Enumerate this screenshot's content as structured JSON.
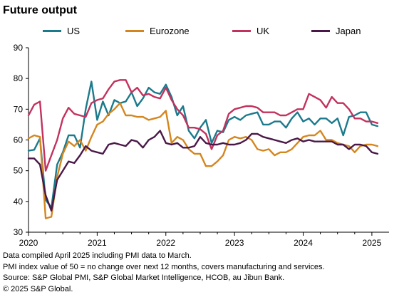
{
  "title": "Future output",
  "notes": [
    "Data compiled April 2025 including PMI data to March.",
    "PMI index value of 50 = no change over next 12 months, covers manufacturing and services.",
    "Source: S&P Global PMI, S&P Global Market Intelligence, HCOB, au Jibun Bank.",
    "© 2025 S&P Global."
  ],
  "chart_data": {
    "type": "line",
    "x_start": "2020-01",
    "x_tick_labels": [
      "2020",
      "2021",
      "2022",
      "2023",
      "2024",
      "2025"
    ],
    "ylim": [
      30,
      90
    ],
    "y_ticks": [
      30,
      40,
      50,
      60,
      70,
      80,
      90
    ],
    "grid": false,
    "legend_placement": "top",
    "series": [
      {
        "name": "US",
        "color": "#1b7a8c",
        "values": [
          56.5,
          56.8,
          60.5,
          40.5,
          38,
          52,
          56,
          61.5,
          61.5,
          57.5,
          70,
          79,
          66.5,
          72.5,
          68,
          73,
          72,
          72.5,
          75.5,
          71,
          73.5,
          77,
          75.5,
          75,
          78,
          74,
          68,
          71,
          63,
          60.5,
          64,
          66.5,
          59,
          63,
          62.5,
          66.5,
          67.5,
          66.5,
          68,
          68.5,
          69,
          65,
          65,
          66,
          66,
          64,
          67,
          69,
          66,
          67,
          65,
          67,
          67,
          65.5,
          67,
          61.5,
          67.5,
          68,
          69,
          69,
          65,
          64.5
        ]
      },
      {
        "name": "Eurozone",
        "color": "#d4861e",
        "values": [
          60.5,
          61.5,
          61,
          34.5,
          35,
          48,
          55.5,
          59.5,
          58,
          60,
          56.5,
          61,
          65,
          66,
          68.5,
          70,
          72,
          68,
          68,
          67.5,
          67.5,
          66.5,
          67,
          67.5,
          69.5,
          59,
          61,
          60,
          57,
          55.5,
          55.5,
          51.5,
          51.5,
          53,
          55,
          60,
          61,
          60.5,
          61,
          60,
          57,
          56.5,
          57,
          55,
          56,
          56,
          57,
          59,
          61,
          61.5,
          61.5,
          63,
          60,
          60,
          59,
          58.5,
          58,
          56,
          58,
          58.5,
          58.5,
          58
        ]
      },
      {
        "name": "UK",
        "color": "#c2325e",
        "values": [
          68,
          71.5,
          72.5,
          50,
          55,
          60,
          67,
          70.5,
          68.5,
          68,
          67.5,
          72,
          73,
          73.5,
          76.5,
          79,
          79.5,
          79.5,
          75.5,
          77,
          74.5,
          75,
          74,
          73.5,
          77,
          73,
          70,
          68,
          64,
          64,
          63.5,
          62,
          57,
          61.5,
          63,
          68.5,
          70,
          70.5,
          71,
          71,
          70.5,
          69,
          69,
          69,
          68,
          68,
          69,
          70,
          70,
          75,
          74,
          73,
          70.5,
          74,
          72,
          72,
          70,
          67,
          67,
          66,
          66,
          65.5
        ]
      },
      {
        "name": "Japan",
        "color": "#4a1848",
        "values": [
          54,
          54,
          52,
          42,
          37,
          47,
          50,
          53,
          52.5,
          55,
          58,
          56.5,
          56,
          55.5,
          58.5,
          59,
          58.5,
          58,
          60,
          59.5,
          57.5,
          60,
          61,
          63,
          59,
          58.5,
          59,
          57.5,
          57.5,
          58,
          61,
          59,
          58.5,
          58.5,
          59,
          58.5,
          58.5,
          59,
          60,
          62,
          62,
          61,
          60.5,
          60,
          59.5,
          59,
          60,
          60.5,
          59.5,
          60,
          59.5,
          59.5,
          59.5,
          59.5,
          58.5,
          58.5,
          57,
          58.5,
          58.5,
          58,
          56,
          55.5
        ]
      }
    ]
  }
}
